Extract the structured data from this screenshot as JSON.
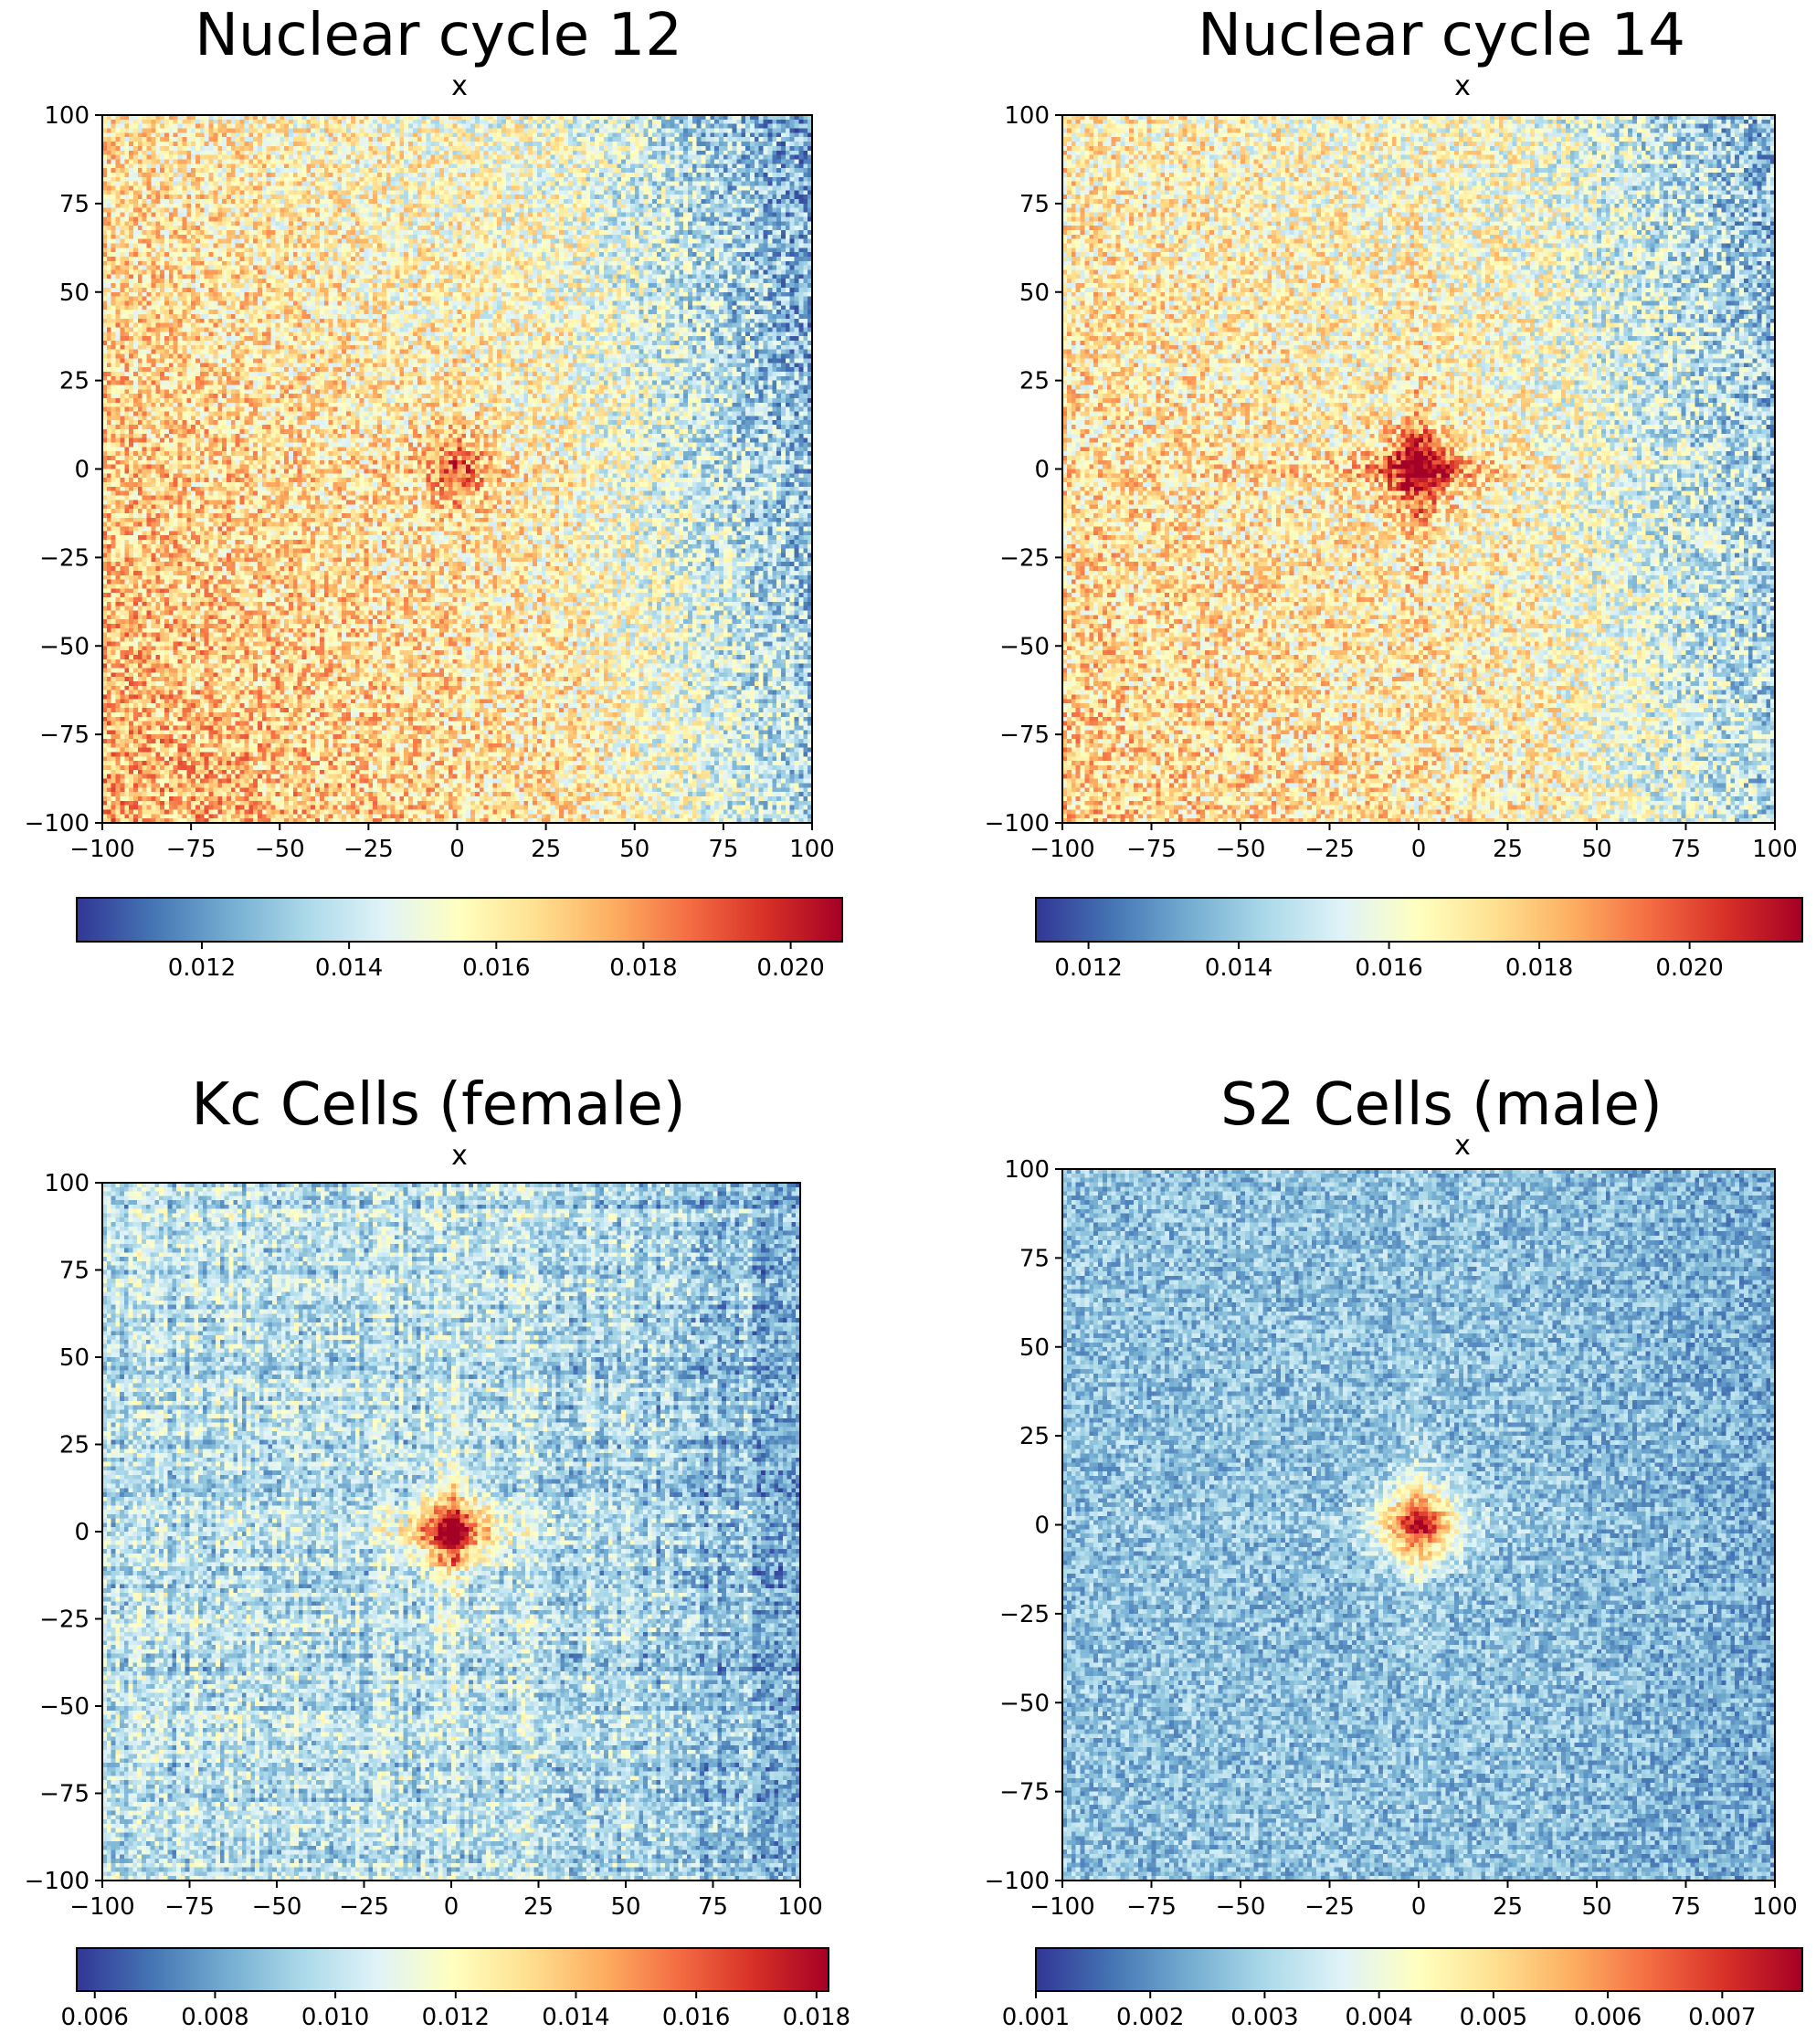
{
  "chart_data": [
    {
      "type": "heatmap",
      "title": "Nuclear cycle 12",
      "annotation": "x",
      "xlim": [
        -100,
        100
      ],
      "ylim": [
        -100,
        100
      ],
      "xticks": [
        -100,
        -75,
        -50,
        -25,
        0,
        25,
        50,
        75,
        100
      ],
      "yticks": [
        100,
        75,
        50,
        25,
        0,
        -25,
        -50,
        -75,
        -100
      ],
      "colormap": "RdYlBu_r",
      "colorbar": {
        "range": [
          0.0103,
          0.0207
        ],
        "ticks": [
          "0.012",
          "0.014",
          "0.016",
          "0.018",
          "0.020"
        ],
        "orientation": "horizontal",
        "placement": "bottom"
      },
      "pattern": {
        "center_intensity": 0.18,
        "cross_intensity": 0.05,
        "background_level": 0.54,
        "left_bottom_gradient": 0.18,
        "right_edge_cooling": 0.22,
        "noise": 0.2
      },
      "grid": false
    },
    {
      "type": "heatmap",
      "title": "Nuclear cycle 14",
      "annotation": "x",
      "xlim": [
        -100,
        100
      ],
      "ylim": [
        -100,
        100
      ],
      "xticks": [
        -100,
        -75,
        -50,
        -25,
        0,
        25,
        50,
        75,
        100
      ],
      "yticks": [
        100,
        75,
        50,
        25,
        0,
        -25,
        -50,
        -75,
        -100
      ],
      "colormap": "RdYlBu_r",
      "colorbar": {
        "range": [
          0.0113,
          0.0215
        ],
        "ticks": [
          "0.012",
          "0.014",
          "0.016",
          "0.018",
          "0.020"
        ],
        "orientation": "horizontal",
        "placement": "bottom"
      },
      "pattern": {
        "center_intensity": 0.34,
        "cross_intensity": 0.16,
        "background_level": 0.52,
        "left_bottom_gradient": 0.12,
        "right_edge_cooling": 0.2,
        "noise": 0.2
      },
      "grid": false
    },
    {
      "type": "heatmap",
      "title": "Kc Cells (female)",
      "annotation": "x",
      "xlim": [
        -100,
        100
      ],
      "ylim": [
        -100,
        100
      ],
      "xticks": [
        -100,
        -75,
        -50,
        -25,
        0,
        25,
        50,
        75,
        100
      ],
      "yticks": [
        100,
        75,
        50,
        25,
        0,
        -25,
        -50,
        -75,
        -100
      ],
      "colormap": "RdYlBu_r",
      "colorbar": {
        "range": [
          0.0057,
          0.0182
        ],
        "ticks": [
          "0.006",
          "0.008",
          "0.010",
          "0.012",
          "0.014",
          "0.016",
          "0.018"
        ],
        "orientation": "horizontal",
        "placement": "bottom"
      },
      "pattern": {
        "center_intensity": 0.5,
        "cross_intensity": 0.16,
        "background_level": 0.33,
        "left_bottom_gradient": 0.0,
        "right_edge_cooling": 0.12,
        "noise": 0.14
      },
      "grid": false
    },
    {
      "type": "heatmap",
      "title": "S2 Cells (male)",
      "annotation": "x",
      "xlim": [
        -100,
        100
      ],
      "ylim": [
        -100,
        100
      ],
      "xticks": [
        -100,
        -75,
        -50,
        -25,
        0,
        25,
        50,
        75,
        100
      ],
      "yticks": [
        100,
        75,
        50,
        25,
        0,
        -25,
        -50,
        -75,
        -100
      ],
      "colormap": "RdYlBu_r",
      "colorbar": {
        "range": [
          0.001,
          0.0077
        ],
        "ticks": [
          "0.001",
          "0.002",
          "0.003",
          "0.004",
          "0.005",
          "0.006",
          "0.007"
        ],
        "orientation": "horizontal",
        "placement": "bottom"
      },
      "pattern": {
        "center_intensity": 0.55,
        "cross_intensity": 0.08,
        "background_level": 0.25,
        "left_bottom_gradient": 0.0,
        "right_edge_cooling": 0.05,
        "noise": 0.13
      },
      "grid": false
    }
  ]
}
